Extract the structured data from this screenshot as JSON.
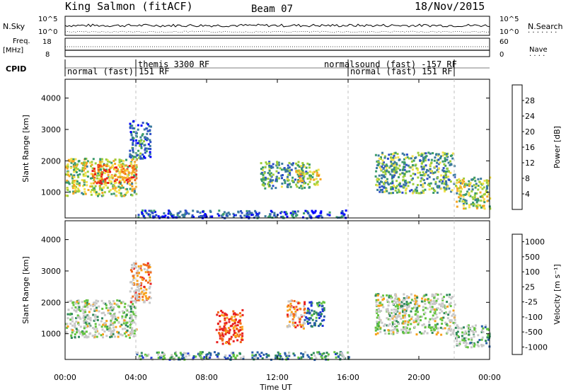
{
  "header": {
    "title": "King Salmon (fitACF)",
    "beam": "Beam 07",
    "date": "18/Nov/2015"
  },
  "top_panels": {
    "nsky_label": "N.Sky",
    "nsearch_label": "N.Search",
    "freq_label_line1": "Freq.",
    "freq_label_line2": "[MHz]",
    "nave_label": "Nave",
    "cpid_label": "CPID",
    "noise_ticks_left": [
      "10^5",
      "10^0"
    ],
    "noise_ticks_right": [
      "10^5",
      "10^0"
    ],
    "freq_ticks": [
      "18",
      "8"
    ],
    "nave_ticks": [
      "60",
      "0"
    ],
    "cpid_segments": [
      {
        "label": "normal (fast) 151 RF",
        "start": 0.0,
        "end": 4.0
      },
      {
        "label": "themis 3300 RF",
        "start": 4.0,
        "end": 16.0
      },
      {
        "label": "normalsound (fast) -157 RF",
        "start": 16.0,
        "end": 22.0
      },
      {
        "label": "normal (fast) 151 RF",
        "start": 16.0,
        "end": 22.0
      }
    ]
  },
  "colors": {
    "power_scale": [
      "#0000ff",
      "#2b4dc8",
      "#3b7a9e",
      "#3a9a6a",
      "#9ccd3a",
      "#f4e14c",
      "#f5a623",
      "#f26a1b",
      "#e81b1b"
    ],
    "velocity_scale": [
      "#2036d8",
      "#2a5fa8",
      "#2f8a5a",
      "#63c440",
      "#c8c8c8",
      "#c8c8c8",
      "#f7a21b",
      "#f26a1b",
      "#e82020"
    ]
  },
  "chart_data": [
    {
      "type": "heatmap",
      "panel": "power",
      "ylabel": "Slant Range [km]",
      "ylim": [
        180,
        4600
      ],
      "y_ticks": [
        "1000",
        "2000",
        "3000",
        "4000"
      ],
      "xlim": [
        0,
        24
      ],
      "x_ticks": [
        "00:00",
        "04:00",
        "08:00",
        "12:00",
        "16:00",
        "20:00",
        "00:00"
      ],
      "colorbar_label": "Power [dB]",
      "colorbar_ticks": [
        "28",
        "24",
        "20",
        "16",
        "12",
        "8",
        "4"
      ],
      "regions": [
        {
          "t": [
            0.0,
            4.0
          ],
          "r": [
            900,
            2100
          ],
          "level": 0.55
        },
        {
          "t": [
            1.5,
            4.0
          ],
          "r": [
            1300,
            1900
          ],
          "level": 0.8
        },
        {
          "t": [
            3.6,
            4.8
          ],
          "r": [
            2100,
            3300
          ],
          "level": 0.25
        },
        {
          "t": [
            4.0,
            16.0
          ],
          "r": [
            200,
            450
          ],
          "level": 0.2
        },
        {
          "t": [
            11.0,
            13.8
          ],
          "r": [
            1150,
            2000
          ],
          "level": 0.35
        },
        {
          "t": [
            13.0,
            14.4
          ],
          "r": [
            1250,
            1750
          ],
          "level": 0.6
        },
        {
          "t": [
            17.5,
            22.0
          ],
          "r": [
            1000,
            2300
          ],
          "level": 0.4
        },
        {
          "t": [
            22.0,
            24.0
          ],
          "r": [
            500,
            1500
          ],
          "level": 0.5
        }
      ]
    },
    {
      "type": "heatmap",
      "panel": "velocity",
      "ylabel": "Slant Range [km]",
      "ylim": [
        180,
        4600
      ],
      "y_ticks": [
        "1000",
        "2000",
        "3000",
        "4000"
      ],
      "xlim": [
        0,
        24
      ],
      "x_ticks": [
        "00:00",
        "04:00",
        "08:00",
        "12:00",
        "16:00",
        "20:00",
        "00:00"
      ],
      "xlabel": "Time UT",
      "colorbar_label": "Velocity [m s⁻¹]",
      "colorbar_ticks": [
        "1000",
        "500",
        "100",
        "25",
        "-25",
        "-100",
        "-500",
        "-1000"
      ],
      "regions": [
        {
          "t": [
            0.0,
            4.0
          ],
          "r": [
            900,
            2100
          ],
          "level": 0.5
        },
        {
          "t": [
            3.6,
            4.8
          ],
          "r": [
            2000,
            3300
          ],
          "level": 0.7
        },
        {
          "t": [
            4.0,
            16.0
          ],
          "r": [
            200,
            450
          ],
          "level": 0.3
        },
        {
          "t": [
            8.5,
            10.0
          ],
          "r": [
            700,
            1800
          ],
          "level": 0.9
        },
        {
          "t": [
            12.5,
            13.5
          ],
          "r": [
            1200,
            2100
          ],
          "level": 0.75
        },
        {
          "t": [
            13.5,
            14.6
          ],
          "r": [
            1250,
            2050
          ],
          "level": 0.2
        },
        {
          "t": [
            17.5,
            22.0
          ],
          "r": [
            1000,
            2300
          ],
          "level": 0.5
        },
        {
          "t": [
            22.0,
            24.0
          ],
          "r": [
            600,
            1300
          ],
          "level": 0.4
        }
      ]
    }
  ]
}
